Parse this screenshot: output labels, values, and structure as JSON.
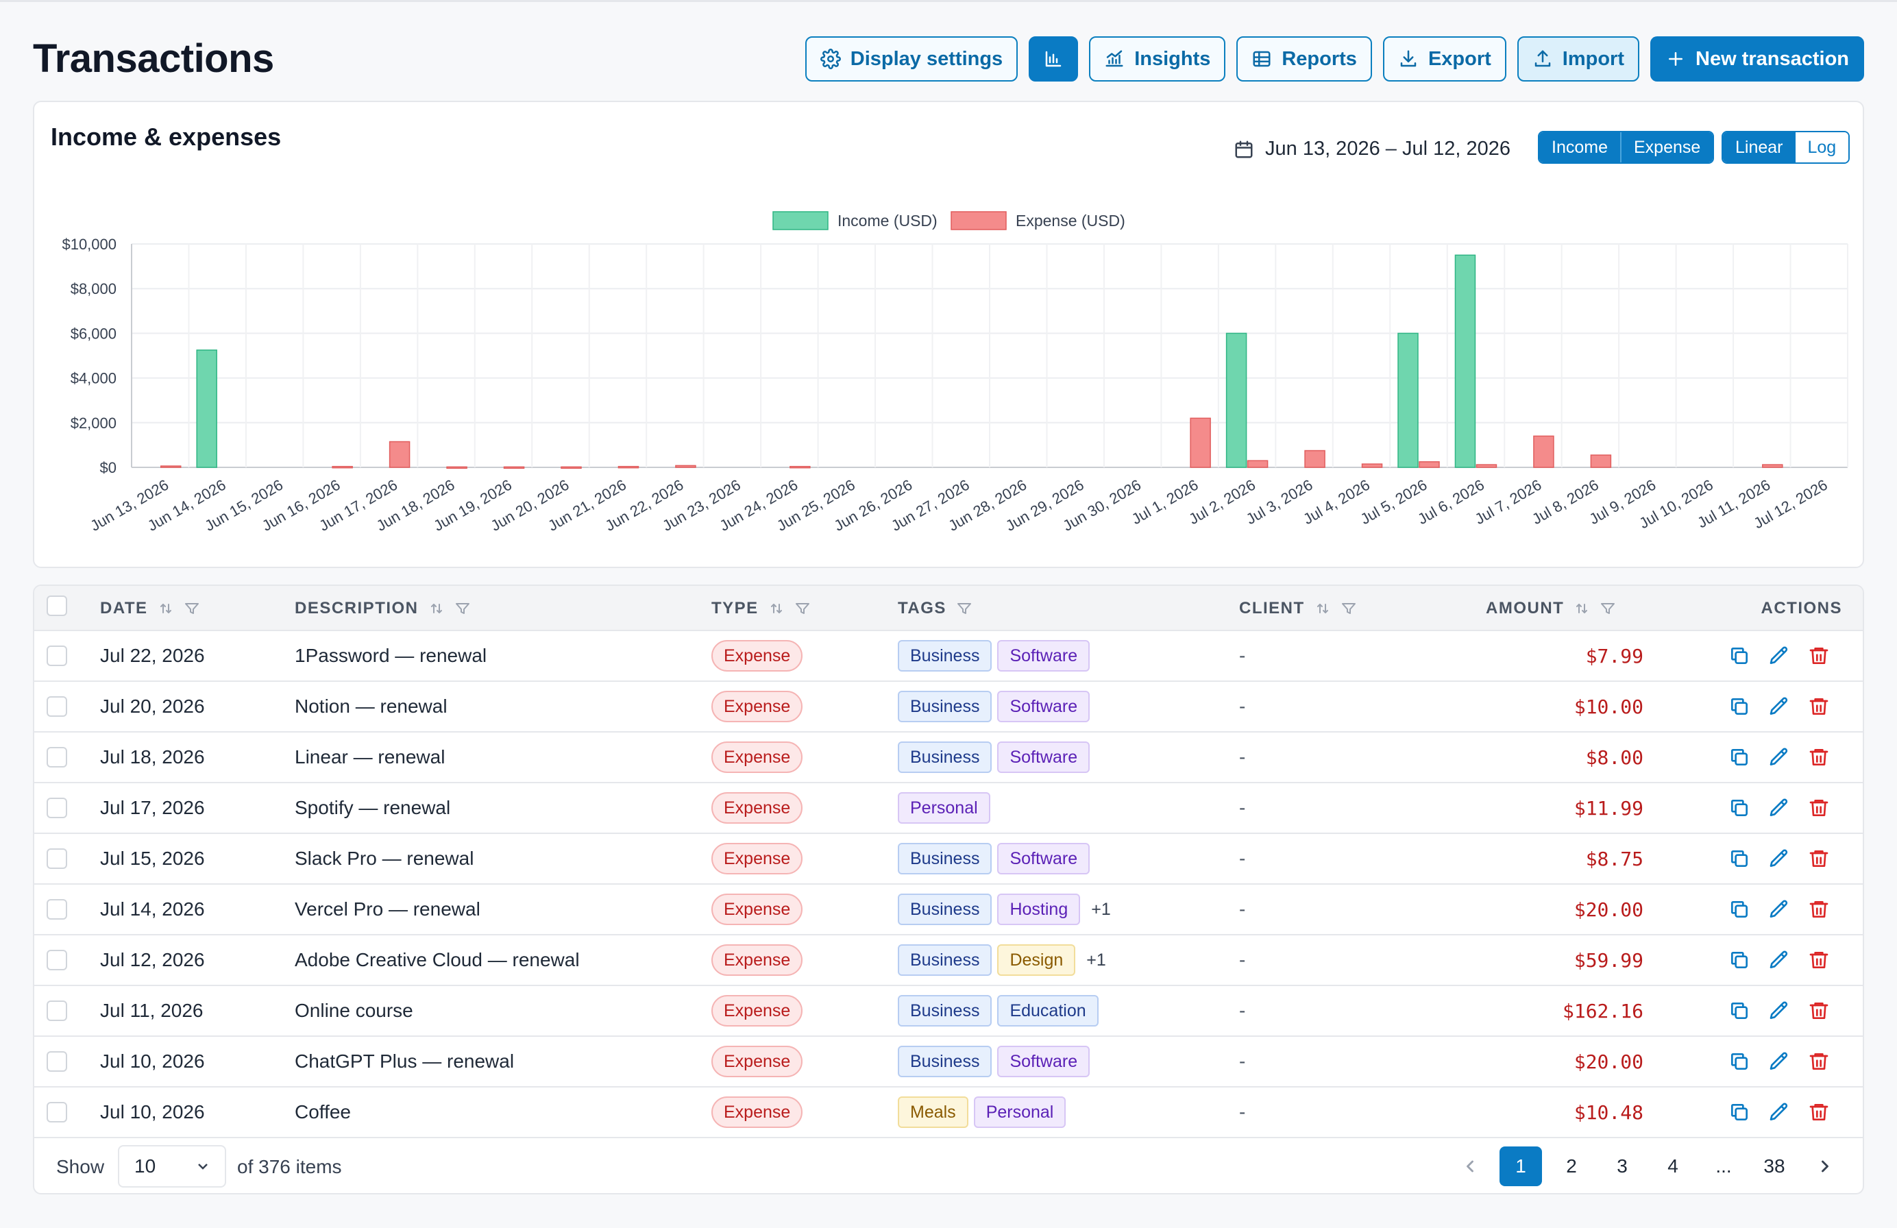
{
  "page": {
    "title": "Transactions"
  },
  "toolbar": {
    "display_settings": "Display settings",
    "insights": "Insights",
    "reports": "Reports",
    "export": "Export",
    "import": "Import",
    "new_transaction": "New transaction"
  },
  "chart_card": {
    "title": "Income & expenses",
    "date_range": "Jun 13, 2026 – Jul 12, 2026",
    "series_toggle": [
      "Income",
      "Expense"
    ],
    "scale_toggle": [
      "Linear",
      "Log"
    ],
    "selected_scale": "Linear"
  },
  "chart_data": {
    "type": "bar",
    "title": "",
    "xlabel": "",
    "ylabel": "",
    "ylim": [
      0,
      10000
    ],
    "yticks": [
      "$0",
      "$2,000",
      "$4,000",
      "$6,000",
      "$8,000",
      "$10,000"
    ],
    "legend_position": "top-center",
    "grid": true,
    "categories": [
      "Jun 13, 2026",
      "Jun 14, 2026",
      "Jun 15, 2026",
      "Jun 16, 2026",
      "Jun 17, 2026",
      "Jun 18, 2026",
      "Jun 19, 2026",
      "Jun 20, 2026",
      "Jun 21, 2026",
      "Jun 22, 2026",
      "Jun 23, 2026",
      "Jun 24, 2026",
      "Jun 25, 2026",
      "Jun 26, 2026",
      "Jun 27, 2026",
      "Jun 28, 2026",
      "Jun 29, 2026",
      "Jun 30, 2026",
      "Jul 1, 2026",
      "Jul 2, 2026",
      "Jul 3, 2026",
      "Jul 4, 2026",
      "Jul 5, 2026",
      "Jul 6, 2026",
      "Jul 7, 2026",
      "Jul 8, 2026",
      "Jul 9, 2026",
      "Jul 10, 2026",
      "Jul 11, 2026",
      "Jul 12, 2026"
    ],
    "series": [
      {
        "name": "Income (USD)",
        "color": "#6fd6ae",
        "stroke": "#2fb584",
        "values": [
          0,
          5250,
          0,
          0,
          0,
          0,
          0,
          0,
          0,
          0,
          0,
          0,
          0,
          0,
          0,
          0,
          0,
          0,
          0,
          6000,
          0,
          0,
          6000,
          9500,
          0,
          0,
          0,
          0,
          0,
          0
        ]
      },
      {
        "name": "Expense (USD)",
        "color": "#f48b8b",
        "stroke": "#e15d5d",
        "values": [
          60,
          0,
          0,
          40,
          1150,
          20,
          20,
          20,
          40,
          80,
          0,
          40,
          0,
          0,
          0,
          0,
          0,
          0,
          2200,
          300,
          750,
          150,
          250,
          120,
          1400,
          550,
          0,
          0,
          120,
          0
        ]
      }
    ]
  },
  "table": {
    "columns": [
      "DATE",
      "DESCRIPTION",
      "TYPE",
      "TAGS",
      "CLIENT",
      "AMOUNT",
      "ACTIONS"
    ],
    "rows": [
      {
        "date": "Jul 22, 2026",
        "description": "1Password — renewal",
        "type": "Expense",
        "tags": [
          "Business",
          "Software"
        ],
        "more": "",
        "client": "-",
        "amount": "$7.99"
      },
      {
        "date": "Jul 20, 2026",
        "description": "Notion — renewal",
        "type": "Expense",
        "tags": [
          "Business",
          "Software"
        ],
        "more": "",
        "client": "-",
        "amount": "$10.00"
      },
      {
        "date": "Jul 18, 2026",
        "description": "Linear — renewal",
        "type": "Expense",
        "tags": [
          "Business",
          "Software"
        ],
        "more": "",
        "client": "-",
        "amount": "$8.00"
      },
      {
        "date": "Jul 17, 2026",
        "description": "Spotify — renewal",
        "type": "Expense",
        "tags": [
          "Personal"
        ],
        "more": "",
        "client": "-",
        "amount": "$11.99"
      },
      {
        "date": "Jul 15, 2026",
        "description": "Slack Pro — renewal",
        "type": "Expense",
        "tags": [
          "Business",
          "Software"
        ],
        "more": "",
        "client": "-",
        "amount": "$8.75"
      },
      {
        "date": "Jul 14, 2026",
        "description": "Vercel Pro — renewal",
        "type": "Expense",
        "tags": [
          "Business",
          "Hosting"
        ],
        "more": "+1",
        "client": "-",
        "amount": "$20.00"
      },
      {
        "date": "Jul 12, 2026",
        "description": "Adobe Creative Cloud — renewal",
        "type": "Expense",
        "tags": [
          "Business",
          "Design"
        ],
        "more": "+1",
        "client": "-",
        "amount": "$59.99"
      },
      {
        "date": "Jul 11, 2026",
        "description": "Online course",
        "type": "Expense",
        "tags": [
          "Business",
          "Education"
        ],
        "more": "",
        "client": "-",
        "amount": "$162.16"
      },
      {
        "date": "Jul 10, 2026",
        "description": "ChatGPT Plus — renewal",
        "type": "Expense",
        "tags": [
          "Business",
          "Software"
        ],
        "more": "",
        "client": "-",
        "amount": "$20.00"
      },
      {
        "date": "Jul 10, 2026",
        "description": "Coffee",
        "type": "Expense",
        "tags": [
          "Meals",
          "Personal"
        ],
        "more": "",
        "client": "-",
        "amount": "$10.48"
      }
    ]
  },
  "footer": {
    "show_label": "Show",
    "page_size": "10",
    "total": "of 376 items",
    "pages": [
      "1",
      "2",
      "3",
      "4",
      "...",
      "38"
    ],
    "current_page": "1"
  }
}
